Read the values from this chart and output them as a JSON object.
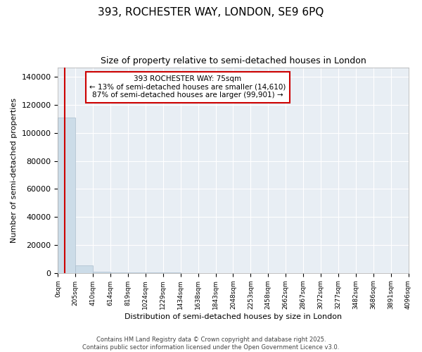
{
  "title": "393, ROCHESTER WAY, LONDON, SE9 6PQ",
  "subtitle": "Size of property relative to semi-detached houses in London",
  "xlabel": "Distribution of semi-detached houses by size in London",
  "ylabel": "Number of semi-detached properties",
  "annotation_title": "393 ROCHESTER WAY: 75sqm",
  "annotation_line1": "← 13% of semi-detached houses are smaller (14,610)",
  "annotation_line2": "87% of semi-detached houses are larger (99,901) →",
  "property_size": 75,
  "bar_color": "#ccdce8",
  "bar_edge_color": "#aabccc",
  "line_color": "#cc0000",
  "annotation_box_color": "#ffffff",
  "annotation_box_edge": "#cc0000",
  "background_color": "#e8eef4",
  "ylim": [
    0,
    147000
  ],
  "yticks": [
    0,
    20000,
    40000,
    60000,
    80000,
    100000,
    120000,
    140000
  ],
  "bin_edges": [
    0,
    205,
    410,
    614,
    819,
    1024,
    1229,
    1434,
    1638,
    1843,
    2048,
    2253,
    2458,
    2662,
    2867,
    3072,
    3277,
    3482,
    3686,
    3891,
    4096
  ],
  "bar_heights": [
    111000,
    5200,
    800,
    350,
    180,
    100,
    65,
    45,
    30,
    22,
    16,
    12,
    9,
    7,
    6,
    5,
    4,
    3,
    3,
    2
  ],
  "copyright_text": "Contains HM Land Registry data © Crown copyright and database right 2025.\nContains public sector information licensed under the Open Government Licence v3.0."
}
